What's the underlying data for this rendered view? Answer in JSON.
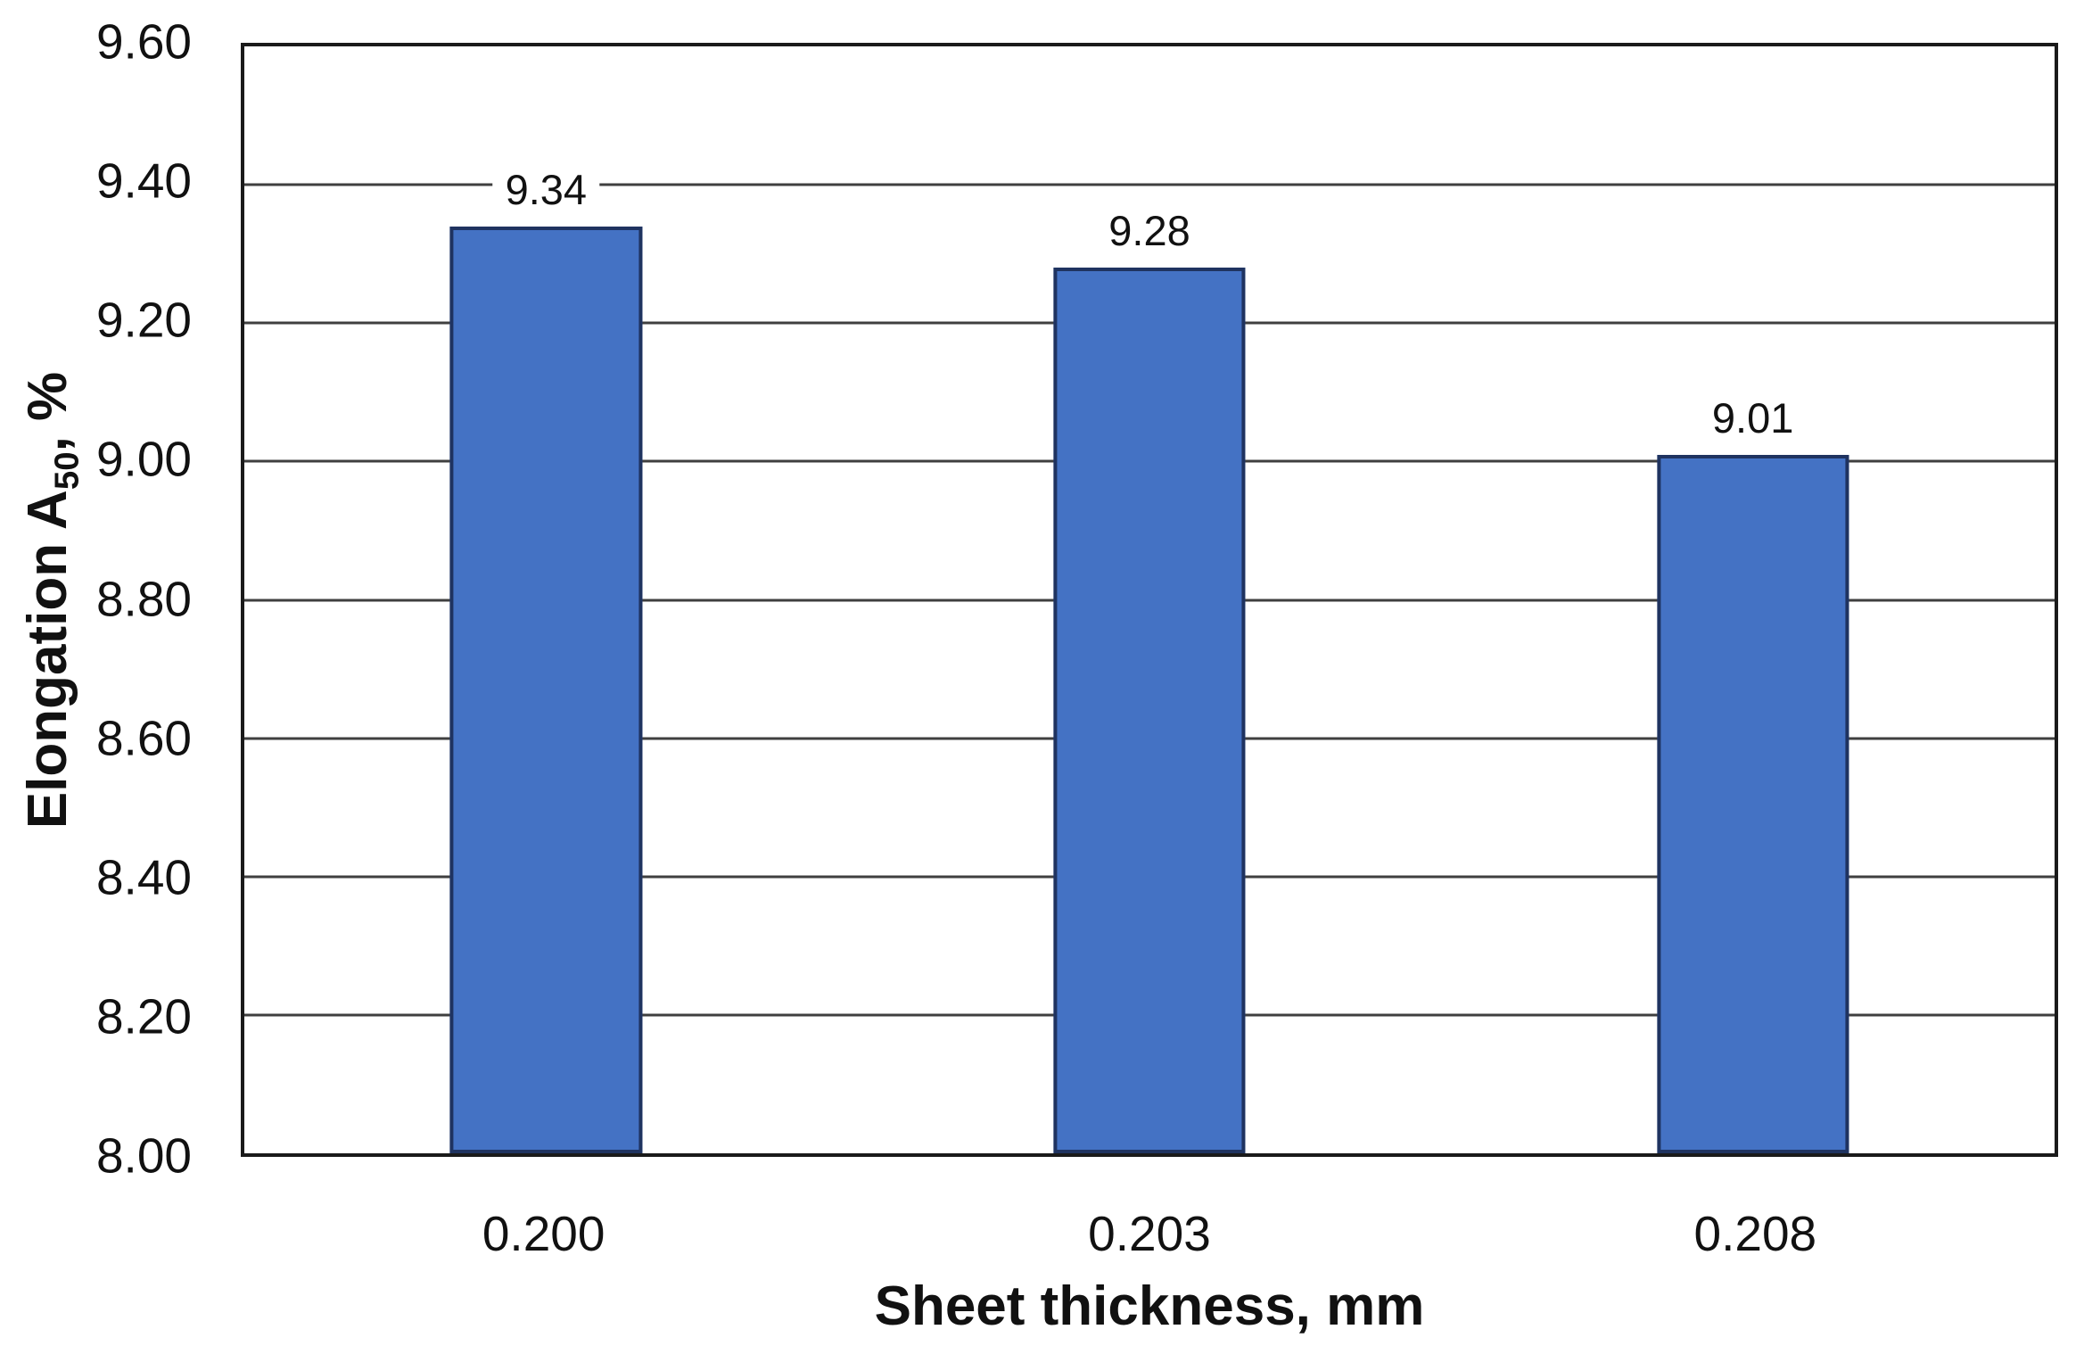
{
  "chart_data": {
    "type": "bar",
    "title": "",
    "xlabel": "Sheet thickness, mm",
    "ylabel": "Elongation A50, %",
    "ylabel_parts": {
      "prefix": "Elongation A",
      "subscript": "50",
      "suffix": ", %"
    },
    "categories": [
      "0.200",
      "0.203",
      "0.208"
    ],
    "values": [
      9.34,
      9.28,
      9.01
    ],
    "data_labels": [
      "9.34",
      "9.28",
      "9.01"
    ],
    "ylim": [
      8.0,
      9.6
    ],
    "ytick_step": 0.2,
    "yticks": [
      "9.60",
      "9.40",
      "9.20",
      "9.00",
      "8.80",
      "8.60",
      "8.40",
      "8.20",
      "8.00"
    ],
    "grid": "horizontal",
    "legend": "none",
    "colors": {
      "bar_fill": "#4472C4",
      "bar_border": "#1F3360",
      "gridline": "#3F3F3F",
      "plot_border": "#1A1A1A",
      "text": "#111111",
      "background": "#FFFFFF"
    }
  }
}
